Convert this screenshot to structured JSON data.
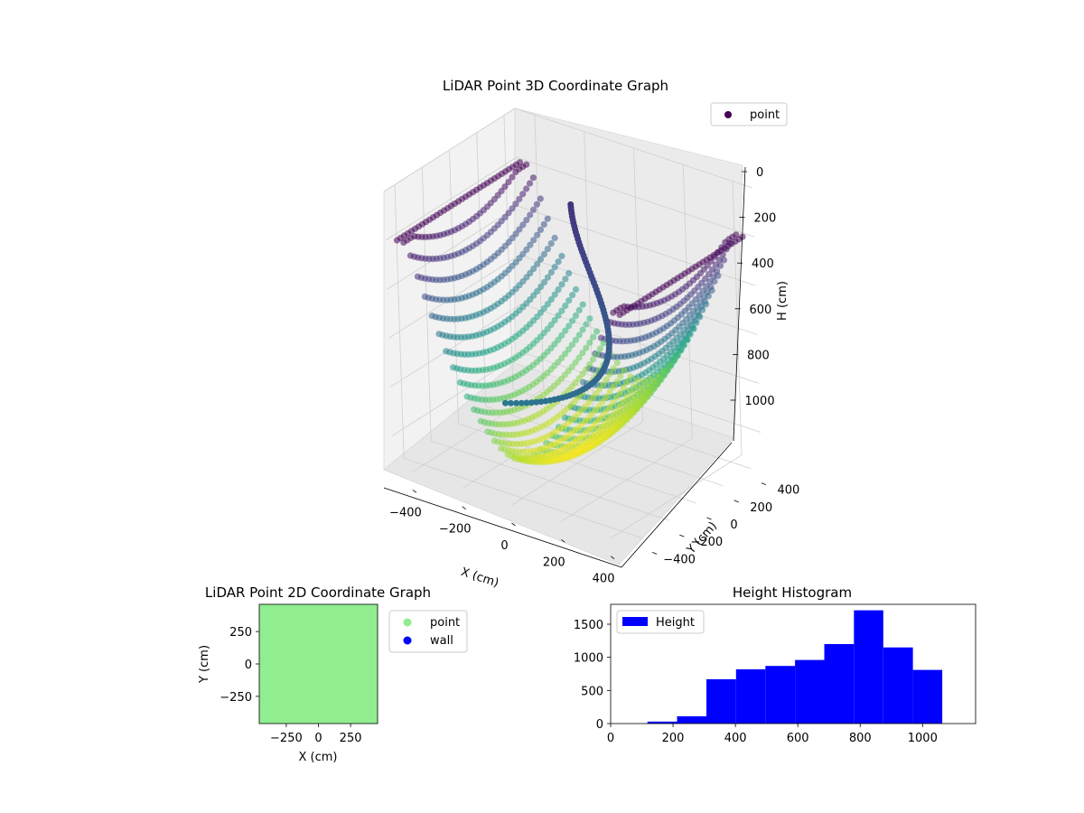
{
  "chart_data": [
    {
      "type": "scatter3d",
      "title": "LiDAR Point 3D Coordinate Graph",
      "xlabel": "X (cm)",
      "ylabel": "Y (cm)",
      "zlabel": "H (cm)",
      "xlim": [
        -480,
        480
      ],
      "ylim": [
        -480,
        480
      ],
      "zlim": [
        1120,
        0
      ],
      "xticks": [
        -400,
        -200,
        0,
        200,
        400
      ],
      "yticks": [
        -400,
        -200,
        0,
        200,
        400
      ],
      "zticks": [
        0,
        200,
        400,
        600,
        800,
        1000
      ],
      "legend": "top-right",
      "colormap": "viridis",
      "series": [
        {
          "name": "point",
          "color": "#440154"
        }
      ],
      "surface": {
        "shape": "bowl",
        "x_range": [
          -450,
          450
        ],
        "y_range": [
          -450,
          450
        ],
        "h_rim": 200,
        "h_bottom": 1060
      },
      "trajectory": {
        "shape": "curve",
        "h_start": 200,
        "h_end": 780
      }
    },
    {
      "type": "scatter",
      "title": "LiDAR Point 2D Coordinate Graph",
      "xlabel": "X (cm)",
      "ylabel": "Y (cm)",
      "xlim": [
        -460,
        460
      ],
      "ylim": [
        -460,
        460
      ],
      "xticks": [
        -250,
        0,
        250
      ],
      "yticks": [
        -250,
        0,
        250
      ],
      "legend": "outside-right",
      "series": [
        {
          "name": "point",
          "color": "#90ee90",
          "extent": [
            -460,
            460
          ]
        },
        {
          "name": "wall",
          "color": "#0000ff"
        }
      ]
    },
    {
      "type": "bar",
      "title": "Height Histogram",
      "xlabel": "",
      "ylabel": "",
      "xlim": [
        0,
        1170
      ],
      "ylim": [
        0,
        1800
      ],
      "xticks": [
        0,
        200,
        400,
        600,
        800,
        1000
      ],
      "yticks": [
        0,
        500,
        1000,
        1500
      ],
      "legend": "top-left",
      "series": [
        {
          "name": "Height",
          "color": "#0000ff"
        }
      ],
      "bins": [
        {
          "x0": 118,
          "x1": 213,
          "value": 30
        },
        {
          "x0": 213,
          "x1": 307,
          "value": 110
        },
        {
          "x0": 307,
          "x1": 402,
          "value": 670
        },
        {
          "x0": 402,
          "x1": 496,
          "value": 820
        },
        {
          "x0": 496,
          "x1": 591,
          "value": 870
        },
        {
          "x0": 591,
          "x1": 685,
          "value": 960
        },
        {
          "x0": 685,
          "x1": 780,
          "value": 1200
        },
        {
          "x0": 780,
          "x1": 874,
          "value": 1710
        },
        {
          "x0": 874,
          "x1": 969,
          "value": 1150
        },
        {
          "x0": 969,
          "x1": 1063,
          "value": 810
        }
      ]
    }
  ]
}
